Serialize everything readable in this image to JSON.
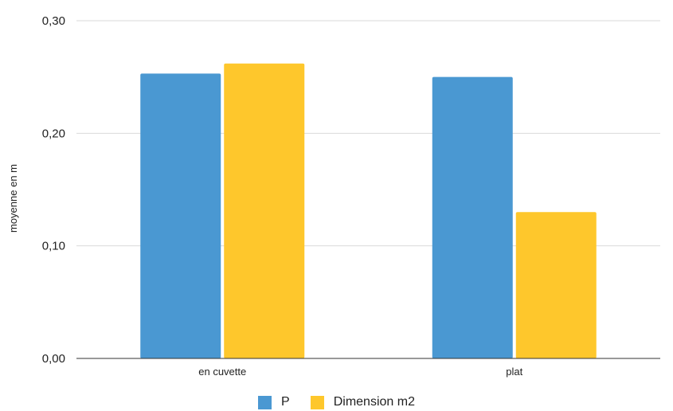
{
  "chart_data": {
    "type": "bar",
    "title": "",
    "xlabel": "",
    "ylabel": "moyenne en m",
    "categories": [
      "en cuvette",
      "plat"
    ],
    "series": [
      {
        "name": "P",
        "values": [
          0.253,
          0.25
        ],
        "color": "#4a98d2"
      },
      {
        "name": "Dimension m2",
        "values": [
          0.262,
          0.13
        ],
        "color": "#fec72c"
      }
    ],
    "ylim": [
      0,
      0.3
    ],
    "yticks": [
      0,
      0.1,
      0.2,
      0.3
    ],
    "ytick_labels": [
      "0,00",
      "0,10",
      "0,20",
      "0,30"
    ],
    "grid": true,
    "legend_position": "bottom"
  }
}
